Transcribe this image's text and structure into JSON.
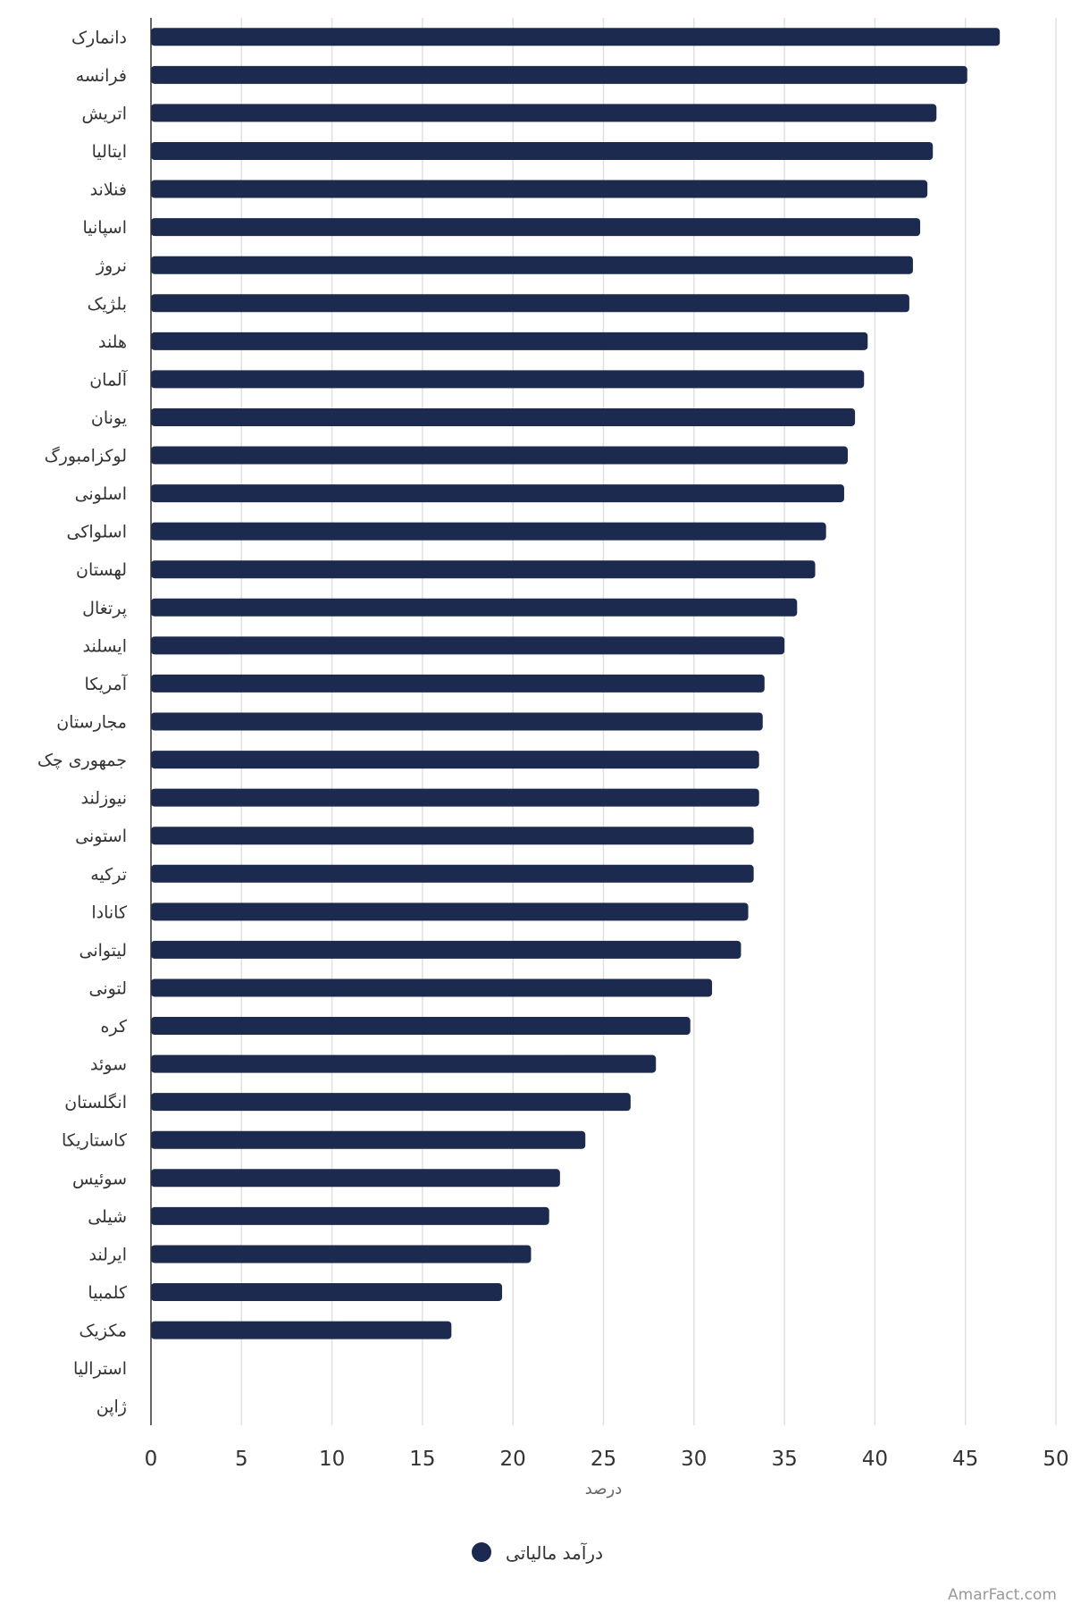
{
  "chart_data": {
    "type": "bar",
    "orientation": "horizontal",
    "categories": [
      "دانمارک",
      "فرانسه",
      "اتریش",
      "ایتالیا",
      "فنلاند",
      "اسپانیا",
      "نروژ",
      "بلژیک",
      "هلند",
      "آلمان",
      "یونان",
      "لوکزامبورگ",
      "اسلونی",
      "اسلواکی",
      "لهستان",
      "پرتغال",
      "ایسلند",
      "آمریکا",
      "مجارستان",
      "جمهوری چک",
      "نیوزلند",
      "استونی",
      "ترکیه",
      "کانادا",
      "لیتوانی",
      "لتونی",
      "کره",
      "سوئد",
      "انگلستان",
      "کاستاریکا",
      "سوئیس",
      "شیلی",
      "ایرلند",
      "کلمبیا",
      "مکزیک",
      "استرالیا",
      "ژاپن"
    ],
    "series": [
      {
        "name": "درآمد مالیاتی",
        "values": [
          46.9,
          45.1,
          43.4,
          43.2,
          42.9,
          42.5,
          42.1,
          41.9,
          39.6,
          39.4,
          38.9,
          38.5,
          38.3,
          37.3,
          36.7,
          35.7,
          35.0,
          33.9,
          33.8,
          33.6,
          33.6,
          33.3,
          33.3,
          33.0,
          32.6,
          31.0,
          29.8,
          27.9,
          26.5,
          24.0,
          22.6,
          22.0,
          21.0,
          19.4,
          16.6,
          null,
          null
        ]
      }
    ],
    "x_ticks": [
      "0",
      "5",
      "10",
      "15",
      "20",
      "25",
      "30",
      "35",
      "40",
      "45",
      "50"
    ],
    "xlim": [
      0,
      50
    ],
    "xlabel": "درصد",
    "grid": true,
    "legend": "bottom-center",
    "bar_color": "#1b2a4e"
  },
  "credit": "AmarFact.com"
}
